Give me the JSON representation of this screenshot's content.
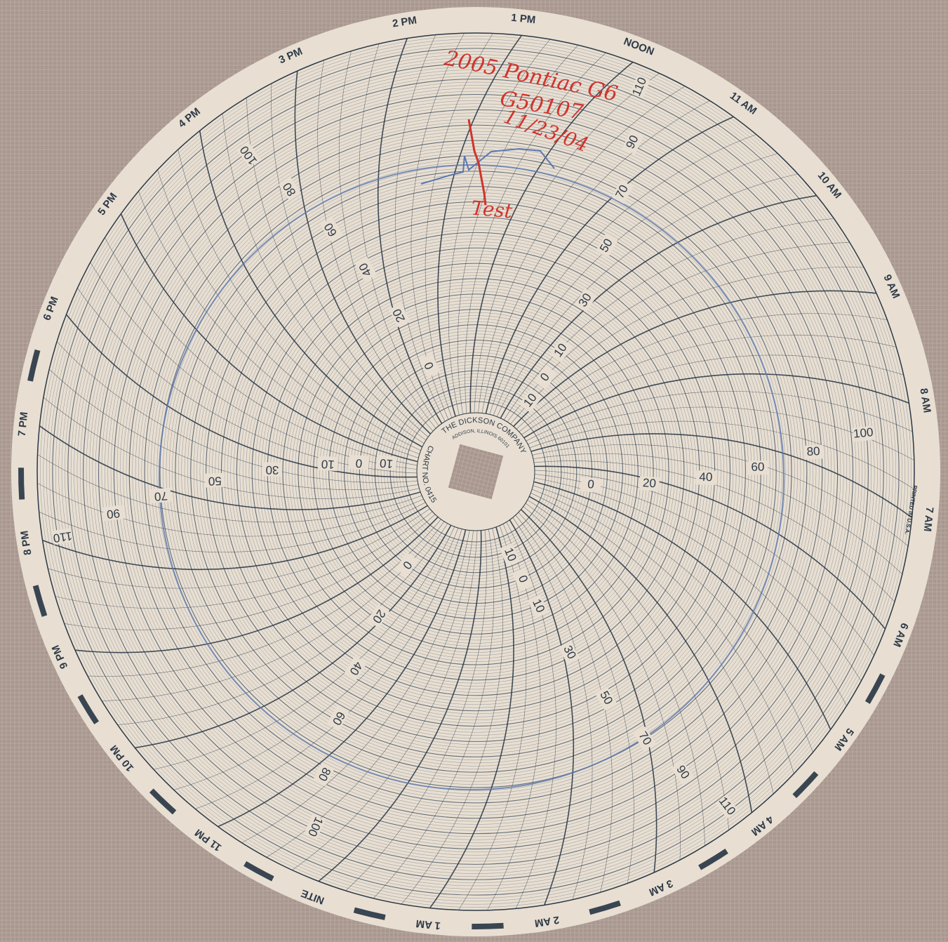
{
  "rim_labels": [
    "NOON",
    "11 AM",
    "10 AM",
    "9 AM",
    "8 AM",
    "7 AM",
    "6 AM",
    "5 AM",
    "4 AM",
    "3 AM",
    "2 AM",
    "1 AM",
    "NITE",
    "11 PM",
    "10 PM",
    "9 PM",
    "8 PM",
    "7 PM",
    "6 PM",
    "5 PM",
    "4 PM",
    "3 PM",
    "2 PM",
    "1 PM"
  ],
  "scale_a": [
    "0",
    "20",
    "40",
    "60",
    "80",
    "100"
  ],
  "scale_b": [
    "10",
    "0",
    "10",
    "30",
    "50",
    "70",
    "90",
    "110"
  ],
  "imprint": {
    "company": "THE DICKSON COMPANY",
    "address": "ADDISON, ILLINOIS 60101",
    "chart_no": "CHART NO. 0415",
    "printed": "PRINTED IN U.S.A."
  },
  "handwriting": {
    "line1": "2005 Pontiac G6",
    "line2": "G50107",
    "line3": "11/23/04",
    "note": "Test"
  }
}
